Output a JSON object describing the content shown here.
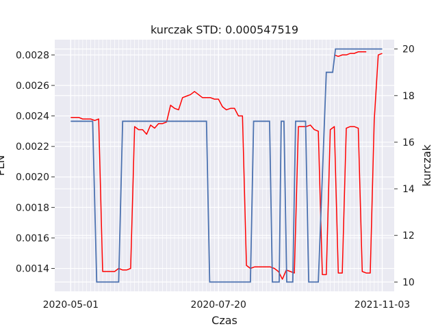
{
  "chart_data": {
    "type": "line",
    "title": "kurczak STD: 0.000547519",
    "xlabel": "Czas",
    "ylabel_left": "PLN",
    "ylabel_right": "kurczak",
    "x_tick_labels": [
      "2020-05-01",
      "2020-07-20",
      "2021-11-03"
    ],
    "y_left_ticks": [
      "0.0014",
      "0.0016",
      "0.0018",
      "0.0020",
      "0.0022",
      "0.0024",
      "0.0026",
      "0.0028"
    ],
    "y_right_ticks": [
      "10",
      "12",
      "14",
      "16",
      "18",
      "20"
    ],
    "ylim_left": [
      0.00125,
      0.0029
    ],
    "ylim_right": [
      9.6,
      20.4
    ],
    "x_range": [
      -4,
      81
    ],
    "grid": true,
    "series": [
      {
        "axis": "left",
        "color": "#ff0000",
        "x": [
          0,
          1,
          2,
          3,
          4,
          5,
          6,
          7,
          8,
          9,
          10,
          11,
          12,
          13,
          14,
          15,
          16,
          17,
          18,
          19,
          20,
          21,
          22,
          23,
          24,
          25,
          26,
          27,
          28,
          29,
          30,
          31,
          32,
          33,
          34,
          35,
          36,
          37,
          38,
          39,
          40,
          41,
          42,
          43,
          44,
          45,
          46,
          47,
          48,
          49,
          50,
          51,
          52,
          53,
          54,
          55,
          56,
          57,
          58,
          59,
          60,
          61,
          62,
          63,
          64,
          65,
          66,
          67,
          68,
          69,
          70,
          71,
          72,
          73,
          74,
          75,
          76,
          77,
          78
        ],
        "values": [
          0.00239,
          0.00239,
          0.00239,
          0.00238,
          0.00238,
          0.00238,
          0.00237,
          0.00238,
          0.00138,
          0.00138,
          0.00138,
          0.00138,
          0.0014,
          0.00139,
          0.00139,
          0.0014,
          0.00233,
          0.00231,
          0.00231,
          0.00228,
          0.00234,
          0.00232,
          0.00235,
          0.00235,
          0.00236,
          0.00247,
          0.00245,
          0.00244,
          0.00252,
          0.00253,
          0.00254,
          0.00256,
          0.00254,
          0.00252,
          0.00252,
          0.00252,
          0.00251,
          0.00251,
          0.00246,
          0.00244,
          0.00245,
          0.00245,
          0.0024,
          0.0024,
          0.00142,
          0.0014,
          0.00141,
          0.00141,
          0.00141,
          0.00141,
          0.00141,
          0.0014,
          0.00138,
          0.00133,
          0.00139,
          0.00138,
          0.00137,
          0.00233,
          0.00233,
          0.00233,
          0.00234,
          0.00231,
          0.0023,
          0.00136,
          0.00136,
          0.00231,
          0.00233,
          0.00137,
          0.00137,
          0.00232,
          0.00233,
          0.00233,
          0.00232,
          0.00138,
          0.00137,
          0.00137,
          0.00237,
          0.0028,
          0.00281
        ]
      },
      {
        "axis": "right",
        "color": "#4c72b0",
        "points": [
          [
            0,
            16.9
          ],
          [
            5.5,
            16.9
          ],
          [
            6.5,
            10.0
          ],
          [
            12,
            10.0
          ],
          [
            13,
            16.9
          ],
          [
            34,
            16.9
          ],
          [
            34.8,
            10.0
          ],
          [
            45,
            10.0
          ],
          [
            45.8,
            16.9
          ],
          [
            49.8,
            16.9
          ],
          [
            50.5,
            10.0
          ],
          [
            52.2,
            10.0
          ],
          [
            52.7,
            16.9
          ],
          [
            53.4,
            16.9
          ],
          [
            54.1,
            10.0
          ],
          [
            55.6,
            10.0
          ],
          [
            56.3,
            16.9
          ],
          [
            58.8,
            16.9
          ],
          [
            59.6,
            10.0
          ],
          [
            62,
            10.0
          ],
          [
            64,
            19.0
          ],
          [
            65.6,
            19.0
          ],
          [
            66.3,
            20.0
          ],
          [
            78,
            20.0
          ]
        ]
      }
    ],
    "red_tail": [
      [
        66,
        0.0028
      ],
      [
        67,
        0.00279
      ],
      [
        68,
        0.0028
      ],
      [
        69,
        0.0028
      ],
      [
        70,
        0.00281
      ],
      [
        71,
        0.00281
      ],
      [
        72,
        0.00282
      ],
      [
        73,
        0.00282
      ],
      [
        74,
        0.00282
      ]
    ]
  }
}
